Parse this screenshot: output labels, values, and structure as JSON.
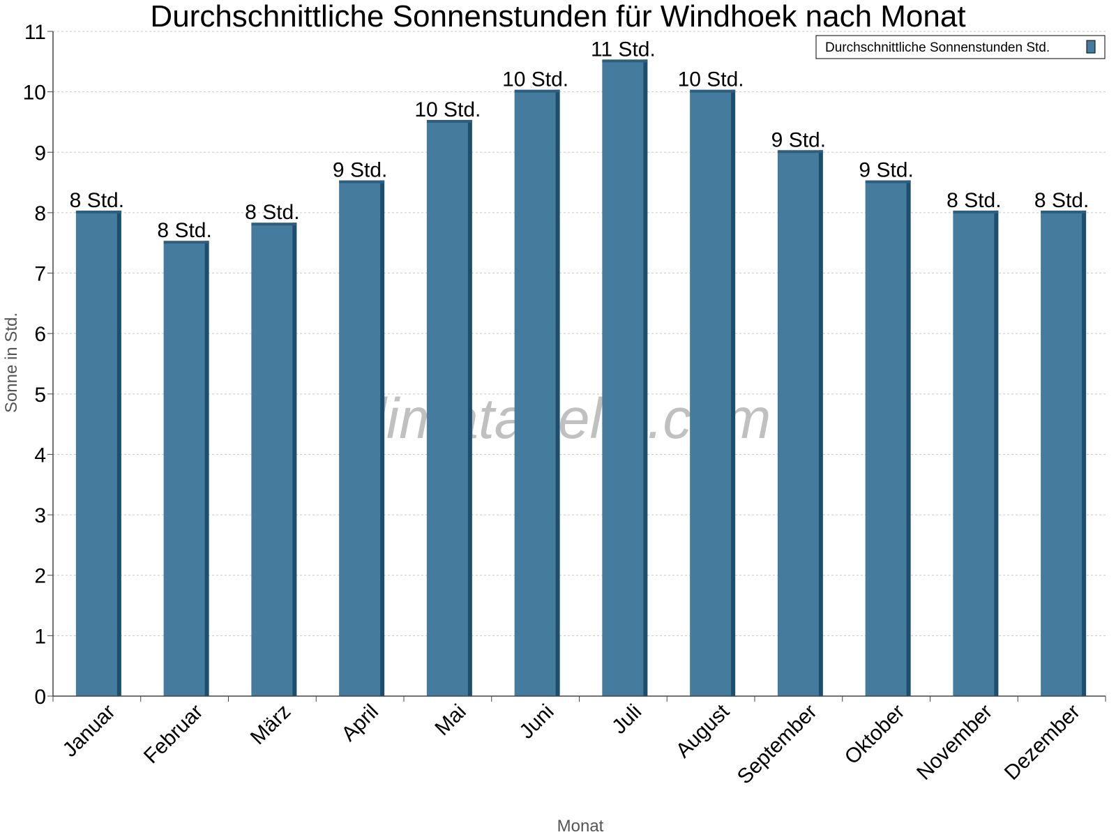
{
  "colors": {
    "bar_face": "#457b9d",
    "bar_side": "#1d4e6e",
    "bar_top": "#2a5f82",
    "grid": "#c8c8c8",
    "axis": "#444444"
  },
  "watermark": "klimatabelle.com",
  "chart_data": {
    "type": "bar",
    "title": "Durchschnittliche Sonnenstunden für Windhoek nach Monat",
    "xlabel": "Monat",
    "ylabel": "Sonne in Std.",
    "ylim": [
      0,
      11
    ],
    "yticks": [
      "0",
      "1",
      "2",
      "3",
      "4",
      "5",
      "6",
      "7",
      "8",
      "9",
      "10",
      "11"
    ],
    "grid": true,
    "legend_position": "top-right",
    "categories": [
      "Januar",
      "Februar",
      "März",
      "April",
      "Mai",
      "Juni",
      "Juli",
      "August",
      "September",
      "Oktober",
      "November",
      "Dezember"
    ],
    "series": [
      {
        "name": "Durchschnittliche Sonnenstunden Std.",
        "values": [
          8.0,
          7.5,
          7.8,
          8.5,
          9.5,
          10.0,
          10.5,
          10.0,
          9.0,
          8.5,
          8.0,
          8.0
        ],
        "labels": [
          "8 Std.",
          "8 Std.",
          "8 Std.",
          "9 Std.",
          "10 Std.",
          "10 Std.",
          "11 Std.",
          "10 Std.",
          "9 Std.",
          "9 Std.",
          "8 Std.",
          "8 Std."
        ]
      }
    ]
  }
}
